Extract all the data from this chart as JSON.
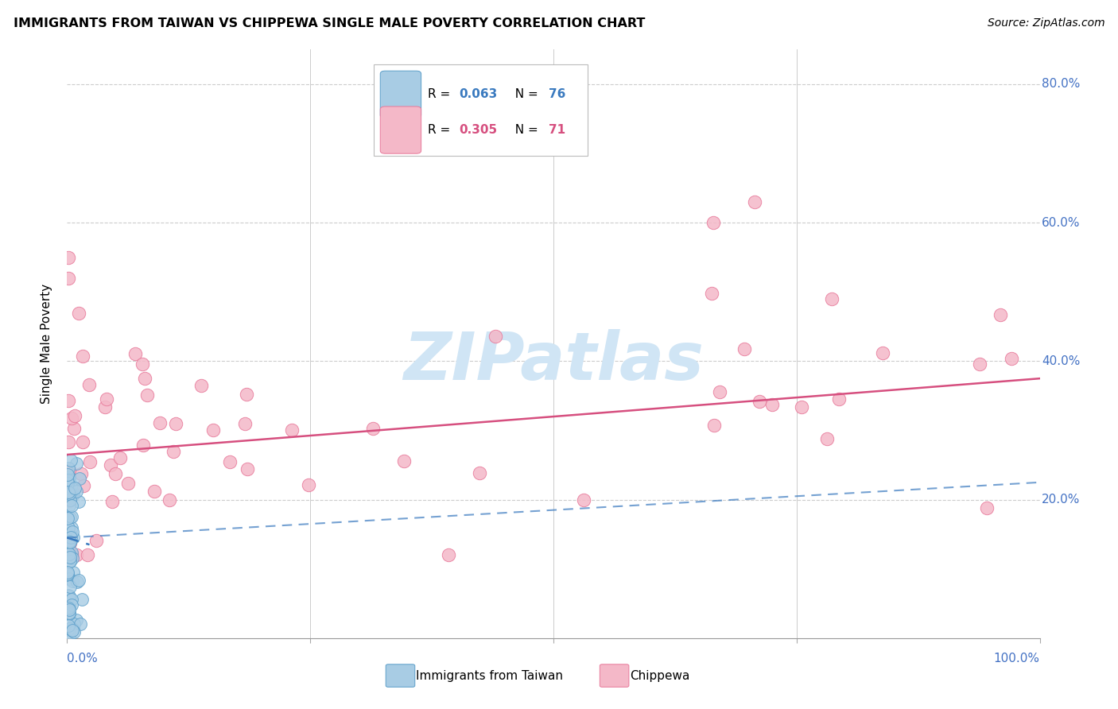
{
  "title": "IMMIGRANTS FROM TAIWAN VS CHIPPEWA SINGLE MALE POVERTY CORRELATION CHART",
  "source": "Source: ZipAtlas.com",
  "ylabel": "Single Male Poverty",
  "legend_taiwan_R": "0.063",
  "legend_taiwan_N": "76",
  "legend_chippewa_R": "0.305",
  "legend_chippewa_N": "71",
  "taiwan_color": "#a8cce4",
  "taiwan_edge": "#5b9ec9",
  "chippewa_color": "#f4b8c8",
  "chippewa_edge": "#e8799a",
  "trend_taiwan_color": "#3a7abf",
  "trend_chippewa_color": "#d64f7f",
  "watermark_text": "ZIPatlas",
  "watermark_color": "#d0e5f5",
  "label_color": "#4472c4",
  "background": "#ffffff",
  "grid_color": "#cccccc",
  "xlim": [
    0.0,
    1.0
  ],
  "ylim": [
    0.0,
    0.85
  ],
  "y_ticks": [
    0.0,
    0.2,
    0.4,
    0.6,
    0.8
  ],
  "y_tick_labels": [
    "",
    "20.0%",
    "40.0%",
    "60.0%",
    "80.0%"
  ]
}
